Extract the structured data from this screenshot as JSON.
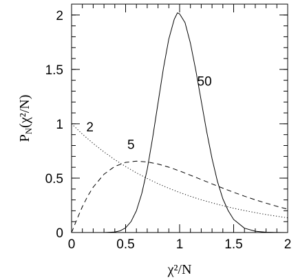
{
  "chart_data": {
    "type": "line",
    "xlabel": "χ²/N",
    "ylabel": "P_N(χ²/N)",
    "ylabel_parts": {
      "p": "P",
      "n": "N",
      "rest": "(χ²/N)"
    },
    "xlim": [
      0,
      2
    ],
    "ylim": [
      0,
      2.1
    ],
    "x_ticks": [
      0,
      0.5,
      1,
      1.5,
      2
    ],
    "x_tick_labels": [
      "0",
      "0.5",
      "1",
      "1.5",
      "2"
    ],
    "y_ticks": [
      0,
      0.5,
      1,
      1.5,
      2
    ],
    "y_tick_labels": [
      "0",
      "0.5",
      "1",
      "1.5",
      "2"
    ],
    "x_minor_step": 0.1,
    "y_minor_step": 0.1,
    "grid": false,
    "series": [
      {
        "name": "2",
        "style": "dotted",
        "x": [
          0,
          0.1,
          0.2,
          0.3,
          0.4,
          0.5,
          0.6,
          0.7,
          0.8,
          0.9,
          1.0,
          1.1,
          1.2,
          1.3,
          1.4,
          1.5,
          1.6,
          1.7,
          1.8,
          1.9,
          2.0
        ],
        "y": [
          1.0,
          0.905,
          0.819,
          0.741,
          0.67,
          0.607,
          0.549,
          0.497,
          0.449,
          0.407,
          0.368,
          0.333,
          0.301,
          0.273,
          0.247,
          0.223,
          0.202,
          0.183,
          0.165,
          0.15,
          0.135
        ]
      },
      {
        "name": "5",
        "style": "dashed",
        "x": [
          0,
          0.05,
          0.1,
          0.15,
          0.2,
          0.3,
          0.4,
          0.5,
          0.6,
          0.7,
          0.8,
          0.9,
          1.0,
          1.1,
          1.2,
          1.3,
          1.4,
          1.5,
          1.6,
          1.7,
          1.8,
          1.9,
          2.0
        ],
        "y": [
          0,
          0.123,
          0.238,
          0.336,
          0.417,
          0.536,
          0.608,
          0.645,
          0.656,
          0.649,
          0.63,
          0.601,
          0.566,
          0.527,
          0.487,
          0.447,
          0.408,
          0.37,
          0.334,
          0.301,
          0.27,
          0.241,
          0.215
        ]
      },
      {
        "name": "50",
        "style": "solid",
        "x": [
          0,
          0.3,
          0.4,
          0.45,
          0.5,
          0.55,
          0.6,
          0.65,
          0.7,
          0.75,
          0.8,
          0.85,
          0.9,
          0.95,
          0.98,
          1.0,
          1.05,
          1.1,
          1.15,
          1.2,
          1.25,
          1.3,
          1.35,
          1.4,
          1.45,
          1.5,
          1.6,
          1.7,
          1.8,
          1.9,
          2.0
        ],
        "y": [
          0,
          0,
          0.005,
          0.016,
          0.043,
          0.1,
          0.2,
          0.36,
          0.58,
          0.87,
          1.19,
          1.51,
          1.78,
          1.96,
          2.02,
          2.01,
          1.93,
          1.74,
          1.49,
          1.21,
          0.93,
          0.68,
          0.47,
          0.31,
          0.2,
          0.12,
          0.04,
          0.012,
          0.003,
          0.001,
          0.0
        ]
      }
    ],
    "annotations": [
      {
        "text": "2",
        "x": 0.17,
        "y": 0.93
      },
      {
        "text": "5",
        "x": 0.55,
        "y": 0.77
      },
      {
        "text": "50",
        "x": 1.23,
        "y": 1.35
      }
    ]
  }
}
